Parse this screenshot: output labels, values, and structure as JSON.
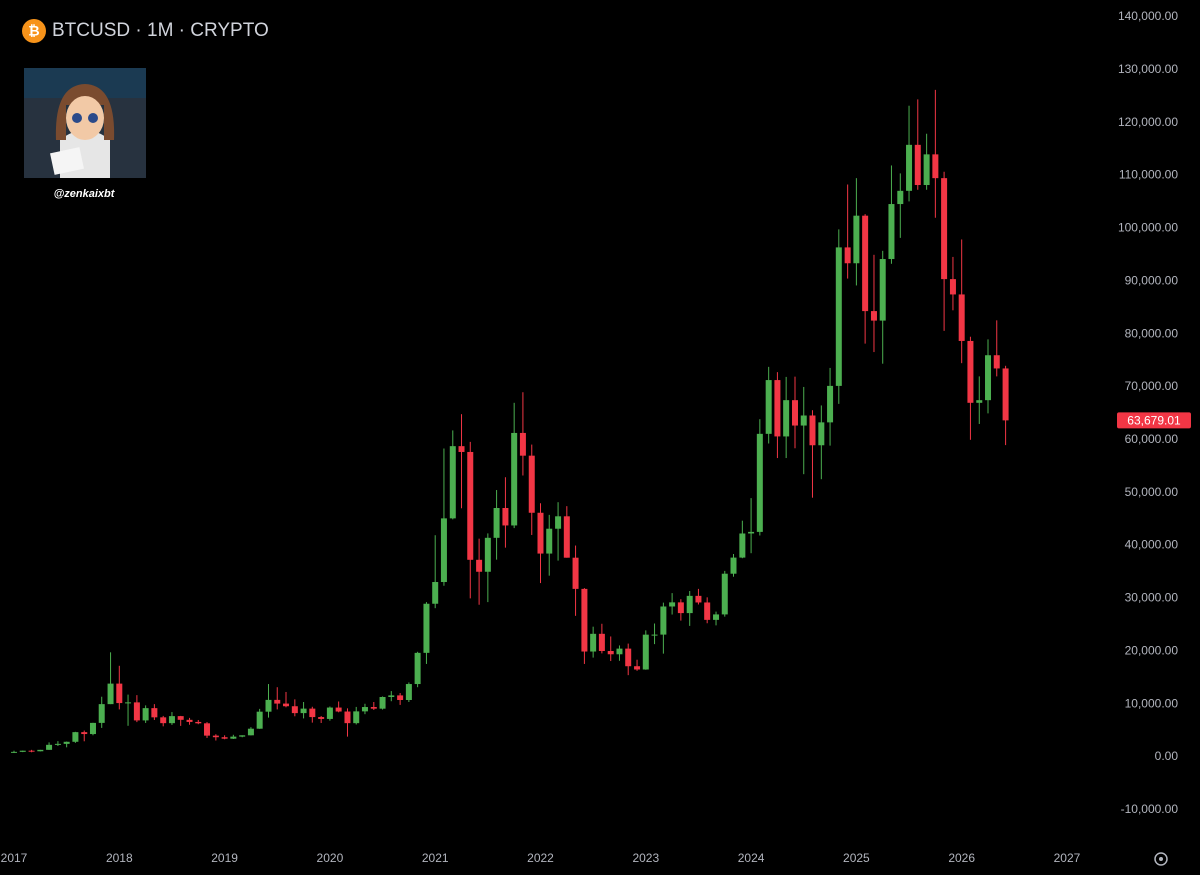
{
  "chart_data": {
    "type": "candlestick",
    "title": "BTCUSD · 1M · CRYPTO",
    "watermark": "@zenkaixbt",
    "up_color": "#4caf50",
    "down_color": "#f23645",
    "xlim": [
      2016.867,
      2027.456
    ],
    "xticks": [
      2017,
      2018,
      2019,
      2020,
      2021,
      2022,
      2023,
      2024,
      2025,
      2026,
      2027
    ],
    "ylim": [
      -16650,
      143200
    ],
    "yticks": [
      {
        "value": -10000,
        "label": "-10,000.00"
      },
      {
        "value": 0,
        "label": "0.00"
      },
      {
        "value": 10000,
        "label": "10,000.00"
      },
      {
        "value": 20000,
        "label": "20,000.00"
      },
      {
        "value": 30000,
        "label": "30,000.00"
      },
      {
        "value": 40000,
        "label": "40,000.00"
      },
      {
        "value": 50000,
        "label": "50,000.00"
      },
      {
        "value": 60000,
        "label": "60,000.00"
      },
      {
        "value": 70000,
        "label": "70,000.00"
      },
      {
        "value": 80000,
        "label": "80,000.00"
      },
      {
        "value": 90000,
        "label": "90,000.00"
      },
      {
        "value": 100000,
        "label": "100,000.00"
      },
      {
        "value": 110000,
        "label": "110,000.00"
      },
      {
        "value": 120000,
        "label": "120,000.00"
      },
      {
        "value": 130000,
        "label": "130,000.00"
      },
      {
        "value": 140000,
        "label": "140,000.00"
      }
    ],
    "last_price": {
      "value": 63679.01,
      "label": "63,679.01"
    },
    "x": [
      2017.0,
      2017.083,
      2017.167,
      2017.25,
      2017.333,
      2017.417,
      2017.5,
      2017.583,
      2017.667,
      2017.75,
      2017.833,
      2017.917,
      2018.0,
      2018.083,
      2018.167,
      2018.25,
      2018.333,
      2018.417,
      2018.5,
      2018.583,
      2018.667,
      2018.75,
      2018.833,
      2018.917,
      2019.0,
      2019.083,
      2019.167,
      2019.25,
      2019.333,
      2019.417,
      2019.5,
      2019.583,
      2019.667,
      2019.75,
      2019.833,
      2019.917,
      2020.0,
      2020.083,
      2020.167,
      2020.25,
      2020.333,
      2020.417,
      2020.5,
      2020.583,
      2020.667,
      2020.75,
      2020.833,
      2020.917,
      2021.0,
      2021.083,
      2021.167,
      2021.25,
      2021.333,
      2021.417,
      2021.5,
      2021.583,
      2021.667,
      2021.75,
      2021.833,
      2021.917,
      2022.0,
      2022.083,
      2022.167,
      2022.25,
      2022.333,
      2022.417,
      2022.5,
      2022.583,
      2022.667,
      2022.75,
      2022.833,
      2022.917,
      2023.0,
      2023.083,
      2023.167,
      2023.25,
      2023.333,
      2023.417,
      2023.5,
      2023.583,
      2023.667,
      2023.75,
      2023.833,
      2023.917,
      2024.0,
      2024.083,
      2024.167,
      2024.25,
      2024.333,
      2024.417,
      2024.5,
      2024.583,
      2024.667,
      2024.75,
      2024.833,
      2024.917,
      2025.0,
      2025.083,
      2025.167,
      2025.25,
      2025.333,
      2025.417,
      2025.5,
      2025.583,
      2025.667,
      2025.75,
      2025.833,
      2025.917,
      2026.0,
      2026.083,
      2026.167,
      2026.25,
      2026.333,
      2026.417
    ],
    "open": [
      963,
      970,
      1190,
      1080,
      1350,
      2300,
      2480,
      2875,
      4700,
      4340,
      6450,
      10000,
      13880,
      10200,
      10330,
      6920,
      9240,
      7500,
      6400,
      7730,
      7030,
      6630,
      6370,
      4040,
      3740,
      3460,
      3850,
      4100,
      5350,
      8570,
      10800,
      10100,
      9600,
      8300,
      9150,
      7550,
      7200,
      9350,
      8600,
      6400,
      8630,
      9450,
      9140,
      11350,
      11650,
      10780,
      13800,
      19700,
      28990,
      33100,
      45140,
      58800,
      57700,
      37300,
      35040,
      41460,
      47100,
      43800,
      61300,
      57000,
      46200,
      38480,
      43180,
      45530,
      37700,
      31800,
      19950,
      23300,
      20050,
      19430,
      20500,
      17170,
      16550,
      23140,
      23150,
      28470,
      29250,
      27220,
      30480,
      29230,
      25940,
      26970,
      34670,
      37720,
      42280,
      42580,
      61130,
      71300,
      60640,
      67500,
      62700,
      64600,
      58970,
      63300,
      70200,
      96400,
      93400,
      102400,
      84350,
      82550,
      94200,
      104600,
      107100,
      115800,
      108200,
      114000,
      109500,
      90400,
      87500,
      78700,
      67000,
      67500,
      76000,
      73500
    ],
    "high": [
      1190,
      1210,
      1350,
      1350,
      2760,
      3000,
      2920,
      4760,
      5000,
      6470,
      11400,
      19800,
      17250,
      11800,
      11700,
      9760,
      10000,
      7770,
      8500,
      7770,
      7400,
      7000,
      6600,
      4300,
      4100,
      4200,
      4100,
      5640,
      9100,
      13800,
      13200,
      12300,
      10900,
      10400,
      9500,
      7750,
      9550,
      10500,
      9200,
      9470,
      10070,
      10400,
      11450,
      12470,
      12100,
      14100,
      19900,
      29300,
      41950,
      58350,
      61780,
      64850,
      59600,
      41300,
      42300,
      50500,
      52920,
      67000,
      69000,
      59100,
      48000,
      45800,
      48200,
      47450,
      40000,
      31950,
      24650,
      25200,
      22800,
      21100,
      21450,
      18400,
      23950,
      25250,
      29200,
      31000,
      29850,
      31400,
      31800,
      30200,
      27500,
      35200,
      38400,
      44700,
      48970,
      63900,
      73800,
      72800,
      71900,
      71950,
      70000,
      65600,
      66500,
      73600,
      99800,
      108300,
      109500,
      102700,
      95000,
      95750,
      111900,
      110400,
      123200,
      124400,
      117900,
      126200,
      110700,
      94600,
      97900,
      79500,
      72000,
      79000,
      82600,
      74000
    ],
    "low": [
      750,
      920,
      890,
      1060,
      1350,
      2080,
      1830,
      2670,
      2970,
      4110,
      5500,
      10000,
      9000,
      5900,
      6600,
      6440,
      7000,
      5800,
      6070,
      5880,
      6100,
      6200,
      3600,
      3120,
      3350,
      3400,
      3730,
      4080,
      5330,
      7450,
      9000,
      9400,
      7700,
      7300,
      6500,
      6430,
      6870,
      8450,
      3850,
      6150,
      8100,
      8900,
      8970,
      10550,
      9850,
      10400,
      13200,
      17600,
      28150,
      32400,
      44950,
      47050,
      30000,
      28800,
      29300,
      37330,
      39600,
      43300,
      53250,
      42000,
      32900,
      34300,
      37150,
      37700,
      26700,
      17600,
      18800,
      19600,
      18150,
      18200,
      15480,
      16300,
      16500,
      21350,
      19550,
      26950,
      25800,
      24800,
      28850,
      25300,
      24900,
      26550,
      34100,
      37600,
      38550,
      41900,
      59300,
      56550,
      56550,
      58400,
      53500,
      49050,
      52550,
      58900,
      66800,
      90500,
      89200,
      78200,
      76600,
      74400,
      93300,
      98200,
      105100,
      107300,
      107300,
      102000,
      80600,
      84500,
      74500,
      60000,
      63000,
      65000,
      72000,
      59000
    ],
    "close": [
      970,
      1190,
      1080,
      1350,
      2300,
      2480,
      2875,
      4700,
      4340,
      6450,
      10000,
      13880,
      10200,
      10330,
      6920,
      9240,
      7500,
      6400,
      7730,
      7030,
      6630,
      6370,
      4040,
      3740,
      3460,
      3850,
      4100,
      5350,
      8570,
      10800,
      10100,
      9600,
      8300,
      9150,
      7550,
      7200,
      9350,
      8600,
      6400,
      8630,
      9450,
      9140,
      11350,
      11650,
      10780,
      13800,
      19700,
      28990,
      33100,
      45140,
      58800,
      57700,
      37300,
      35040,
      41460,
      47100,
      43800,
      61300,
      57000,
      46200,
      38480,
      43180,
      45530,
      37700,
      31800,
      19950,
      23300,
      20050,
      19430,
      20500,
      17170,
      16550,
      23140,
      23150,
      28470,
      29250,
      27220,
      30480,
      29230,
      25940,
      26970,
      34670,
      37720,
      42280,
      42580,
      61130,
      71300,
      60640,
      67500,
      62700,
      64600,
      58970,
      63300,
      70200,
      96400,
      93400,
      102400,
      84350,
      82550,
      94200,
      104600,
      107100,
      115800,
      108200,
      114000,
      109500,
      90400,
      87500,
      78700,
      67000,
      67500,
      76000,
      73500,
      63679.01
    ]
  }
}
